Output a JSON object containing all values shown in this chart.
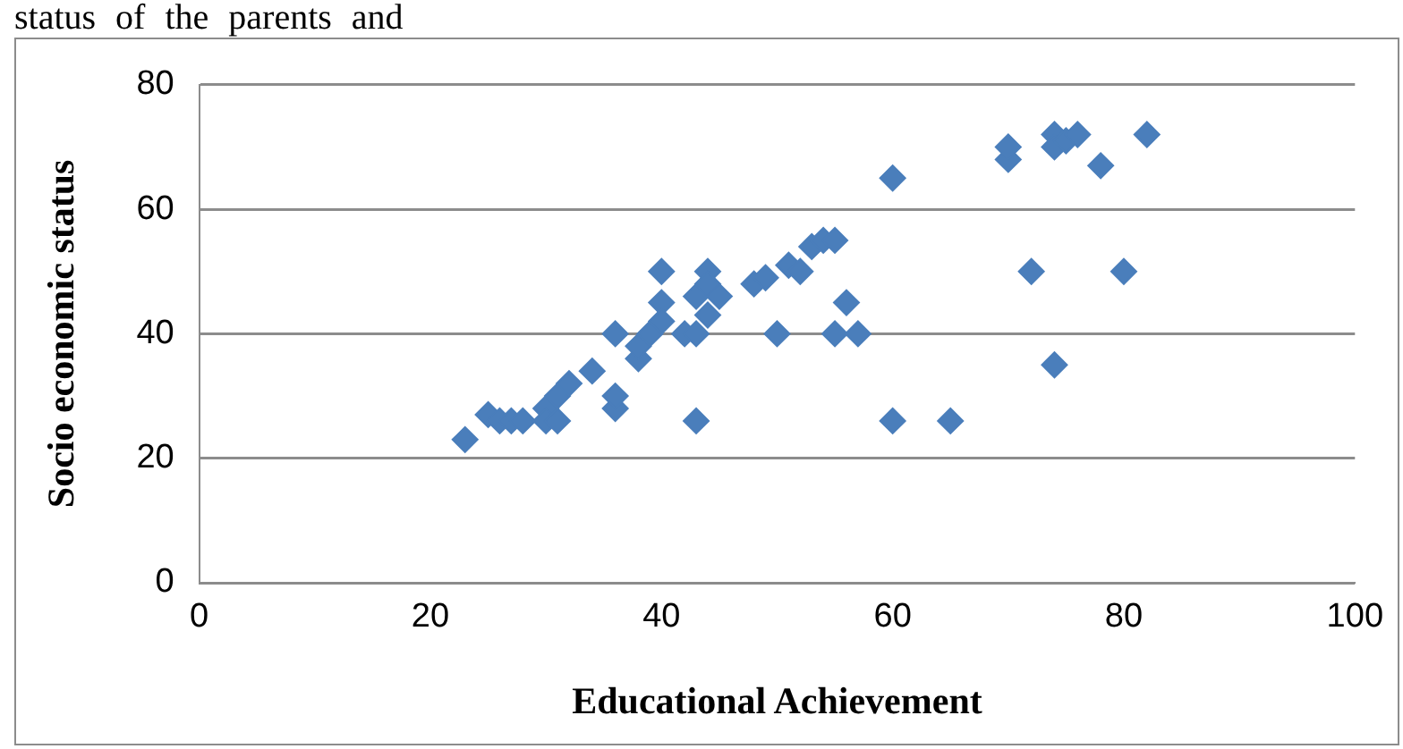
{
  "chart_data": {
    "type": "scatter",
    "xlabel": "Educational Achievement",
    "ylabel": "Socio economic status",
    "annotations": [
      "status of the parents and"
    ],
    "x": [
      23,
      25,
      26,
      27,
      28,
      30,
      30,
      31,
      31,
      32,
      34,
      36,
      36,
      36,
      38,
      38,
      39,
      40,
      40,
      40,
      42,
      43,
      43,
      43,
      44,
      44,
      44,
      45,
      48,
      49,
      50,
      51,
      52,
      53,
      54,
      55,
      55,
      56,
      57,
      60,
      60,
      65,
      70,
      70,
      72,
      74,
      74,
      74,
      75,
      76,
      78,
      80,
      82
    ],
    "series": [
      {
        "color": "#4a7ebb",
        "values": [
          23,
          27,
          26,
          26,
          26,
          28,
          26,
          26,
          30,
          32,
          34,
          28,
          30,
          40,
          36,
          38,
          40,
          50,
          45,
          42,
          40,
          40,
          26,
          46,
          43,
          50,
          48,
          46,
          48,
          49,
          40,
          51,
          50,
          54,
          55,
          55,
          40,
          45,
          40,
          65,
          26,
          26,
          68,
          70,
          50,
          72,
          70,
          35,
          71,
          72,
          67,
          50,
          72
        ]
      }
    ],
    "xlim": [
      0,
      100
    ],
    "xticks": [
      0,
      20,
      40,
      60,
      80,
      100
    ],
    "ylim": [
      0,
      80
    ],
    "yticks": [
      0,
      20,
      40,
      60,
      80
    ],
    "grid": "y",
    "legend": false,
    "marker": "diamond"
  }
}
